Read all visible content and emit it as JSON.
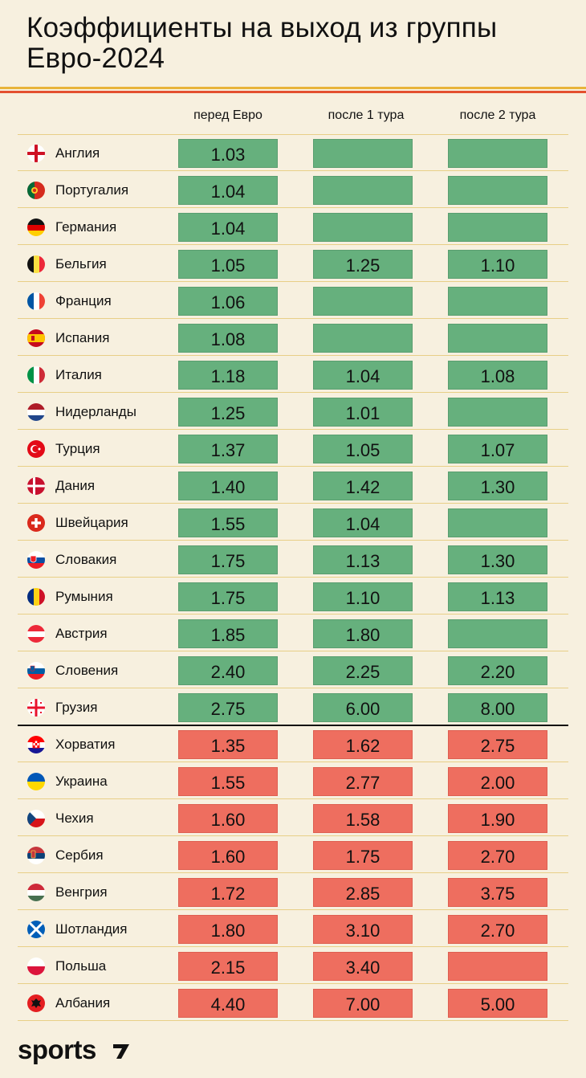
{
  "title": "Коэффициенты на выход из группы Евро-2024",
  "columns": [
    "перед Евро",
    "после 1 тура",
    "после 2 тура"
  ],
  "brand": "sports",
  "colors": {
    "qualified": "#66b07d",
    "risk": "#ee6e5f",
    "background": "#f7f0df"
  },
  "chart_data": {
    "type": "table",
    "title": "Коэффициенты на выход из группы Евро-2024",
    "columns": [
      "перед Евро",
      "после 1 тура",
      "после 2 тура"
    ],
    "rows": [
      {
        "country": "Англия",
        "flag": "england-flag-icon",
        "group": "green",
        "values": [
          "1.03",
          "",
          ""
        ]
      },
      {
        "country": "Португалия",
        "flag": "portugal-flag-icon",
        "group": "green",
        "values": [
          "1.04",
          "",
          ""
        ]
      },
      {
        "country": "Германия",
        "flag": "germany-flag-icon",
        "group": "green",
        "values": [
          "1.04",
          "",
          ""
        ]
      },
      {
        "country": "Бельгия",
        "flag": "belgium-flag-icon",
        "group": "green",
        "values": [
          "1.05",
          "1.25",
          "1.10"
        ]
      },
      {
        "country": "Франция",
        "flag": "france-flag-icon",
        "group": "green",
        "values": [
          "1.06",
          "",
          ""
        ]
      },
      {
        "country": "Испания",
        "flag": "spain-flag-icon",
        "group": "green",
        "values": [
          "1.08",
          "",
          ""
        ]
      },
      {
        "country": "Италия",
        "flag": "italy-flag-icon",
        "group": "green",
        "values": [
          "1.18",
          "1.04",
          "1.08"
        ]
      },
      {
        "country": "Нидерланды",
        "flag": "netherlands-flag-icon",
        "group": "green",
        "values": [
          "1.25",
          "1.01",
          ""
        ]
      },
      {
        "country": "Турция",
        "flag": "turkey-flag-icon",
        "group": "green",
        "values": [
          "1.37",
          "1.05",
          "1.07"
        ]
      },
      {
        "country": "Дания",
        "flag": "denmark-flag-icon",
        "group": "green",
        "values": [
          "1.40",
          "1.42",
          "1.30"
        ]
      },
      {
        "country": "Швейцария",
        "flag": "switzerland-flag-icon",
        "group": "green",
        "values": [
          "1.55",
          "1.04",
          ""
        ]
      },
      {
        "country": "Словакия",
        "flag": "slovakia-flag-icon",
        "group": "green",
        "values": [
          "1.75",
          "1.13",
          "1.30"
        ]
      },
      {
        "country": "Румыния",
        "flag": "romania-flag-icon",
        "group": "green",
        "values": [
          "1.75",
          "1.10",
          "1.13"
        ]
      },
      {
        "country": "Австрия",
        "flag": "austria-flag-icon",
        "group": "green",
        "values": [
          "1.85",
          "1.80",
          ""
        ]
      },
      {
        "country": "Словения",
        "flag": "slovenia-flag-icon",
        "group": "green",
        "values": [
          "2.40",
          "2.25",
          "2.20"
        ]
      },
      {
        "country": "Грузия",
        "flag": "georgia-flag-icon",
        "group": "green",
        "values": [
          "2.75",
          "6.00",
          "8.00"
        ]
      },
      {
        "country": "Хорватия",
        "flag": "croatia-flag-icon",
        "group": "red",
        "values": [
          "1.35",
          "1.62",
          "2.75"
        ]
      },
      {
        "country": "Украина",
        "flag": "ukraine-flag-icon",
        "group": "red",
        "values": [
          "1.55",
          "2.77",
          "2.00"
        ]
      },
      {
        "country": "Чехия",
        "flag": "czechia-flag-icon",
        "group": "red",
        "values": [
          "1.60",
          "1.58",
          "1.90"
        ]
      },
      {
        "country": "Сербия",
        "flag": "serbia-flag-icon",
        "group": "red",
        "values": [
          "1.60",
          "1.75",
          "2.70"
        ]
      },
      {
        "country": "Венгрия",
        "flag": "hungary-flag-icon",
        "group": "red",
        "values": [
          "1.72",
          "2.85",
          "3.75"
        ]
      },
      {
        "country": "Шотландия",
        "flag": "scotland-flag-icon",
        "group": "red",
        "values": [
          "1.80",
          "3.10",
          "2.70"
        ]
      },
      {
        "country": "Польша",
        "flag": "poland-flag-icon",
        "group": "red",
        "values": [
          "2.15",
          "3.40",
          ""
        ]
      },
      {
        "country": "Албания",
        "flag": "albania-flag-icon",
        "group": "red",
        "values": [
          "4.40",
          "7.00",
          "5.00"
        ]
      }
    ]
  }
}
